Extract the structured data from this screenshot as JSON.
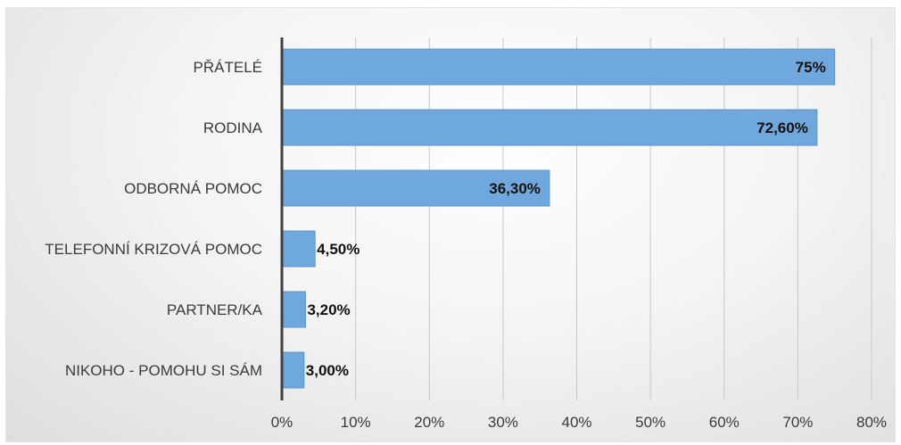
{
  "chart_data": {
    "type": "bar",
    "orientation": "horizontal",
    "categories": [
      "PŘÁTELÉ",
      "RODINA",
      "ODBORNÁ POMOC",
      "TELEFONNÍ KRIZOVÁ POMOC",
      "PARTNER/KA",
      "NIKOHO - POMOHU SI SÁM"
    ],
    "values": [
      75,
      72.6,
      36.3,
      4.5,
      3.2,
      3.0
    ],
    "data_labels": [
      "75%",
      "72,60%",
      "36,30%",
      "4,50%",
      "3,20%",
      "3,00%"
    ],
    "xlim": [
      0,
      80
    ],
    "x_ticks": [
      0,
      10,
      20,
      30,
      40,
      50,
      60,
      70,
      80
    ],
    "x_tick_labels": [
      "0%",
      "10%",
      "20%",
      "30%",
      "40%",
      "50%",
      "60%",
      "70%",
      "80%"
    ],
    "title": "",
    "xlabel": "",
    "ylabel": "",
    "grid": "vertical",
    "legend": "none",
    "colors": {
      "bar": "#6fa8dc",
      "bar_edge": "#5b93c7",
      "axis": "#404040",
      "grid": "#c8c8c8"
    }
  }
}
